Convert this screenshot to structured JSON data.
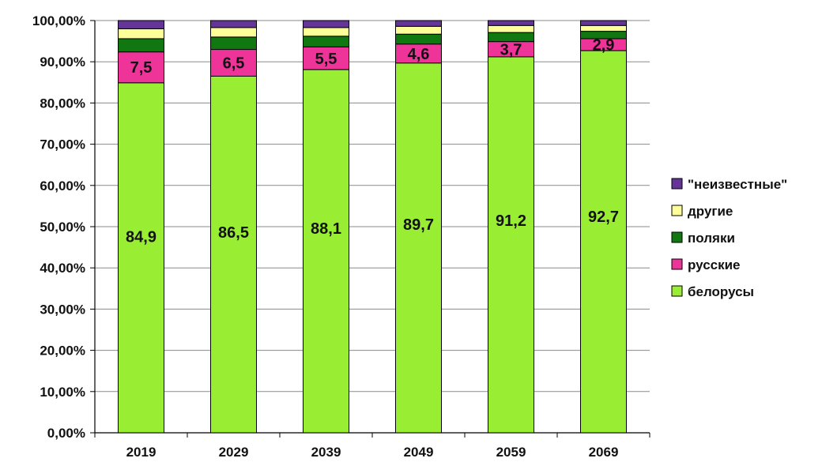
{
  "chart_data": {
    "type": "bar",
    "stacked": true,
    "categories": [
      "2019",
      "2029",
      "2039",
      "2049",
      "2059",
      "2069"
    ],
    "ylim": [
      0,
      100
    ],
    "y_ticks": [
      "0,00%",
      "10,00%",
      "20,00%",
      "30,00%",
      "40,00%",
      "50,00%",
      "60,00%",
      "70,00%",
      "80,00%",
      "90,00%",
      "100,00%"
    ],
    "grid": true,
    "legend_position": "right",
    "series": [
      {
        "name": "белорусы",
        "color": "#99ee33",
        "values": [
          84.9,
          86.5,
          88.1,
          89.7,
          91.2,
          92.7
        ],
        "labels": [
          "84,9",
          "86,5",
          "88,1",
          "89,7",
          "91,2",
          "92,7"
        ]
      },
      {
        "name": "русские",
        "color": "#ee3399",
        "values": [
          7.5,
          6.5,
          5.5,
          4.6,
          3.7,
          2.9
        ],
        "labels": [
          "7,5",
          "6,5",
          "5,5",
          "4,6",
          "3,7",
          "2,9"
        ]
      },
      {
        "name": "поляки",
        "color": "#117711",
        "values": [
          3.2,
          3.0,
          2.6,
          2.4,
          2.2,
          1.8
        ]
      },
      {
        "name": "другие",
        "color": "#ffff99",
        "values": [
          2.4,
          2.3,
          2.1,
          1.9,
          1.7,
          1.4
        ]
      },
      {
        "name": "\"неизвестные\"",
        "color": "#663399",
        "values": [
          2.0,
          1.7,
          1.7,
          1.4,
          1.2,
          1.2
        ]
      }
    ],
    "legend_order": [
      "\"неизвестные\"",
      "другие",
      "поляки",
      "русские",
      "белорусы"
    ]
  }
}
